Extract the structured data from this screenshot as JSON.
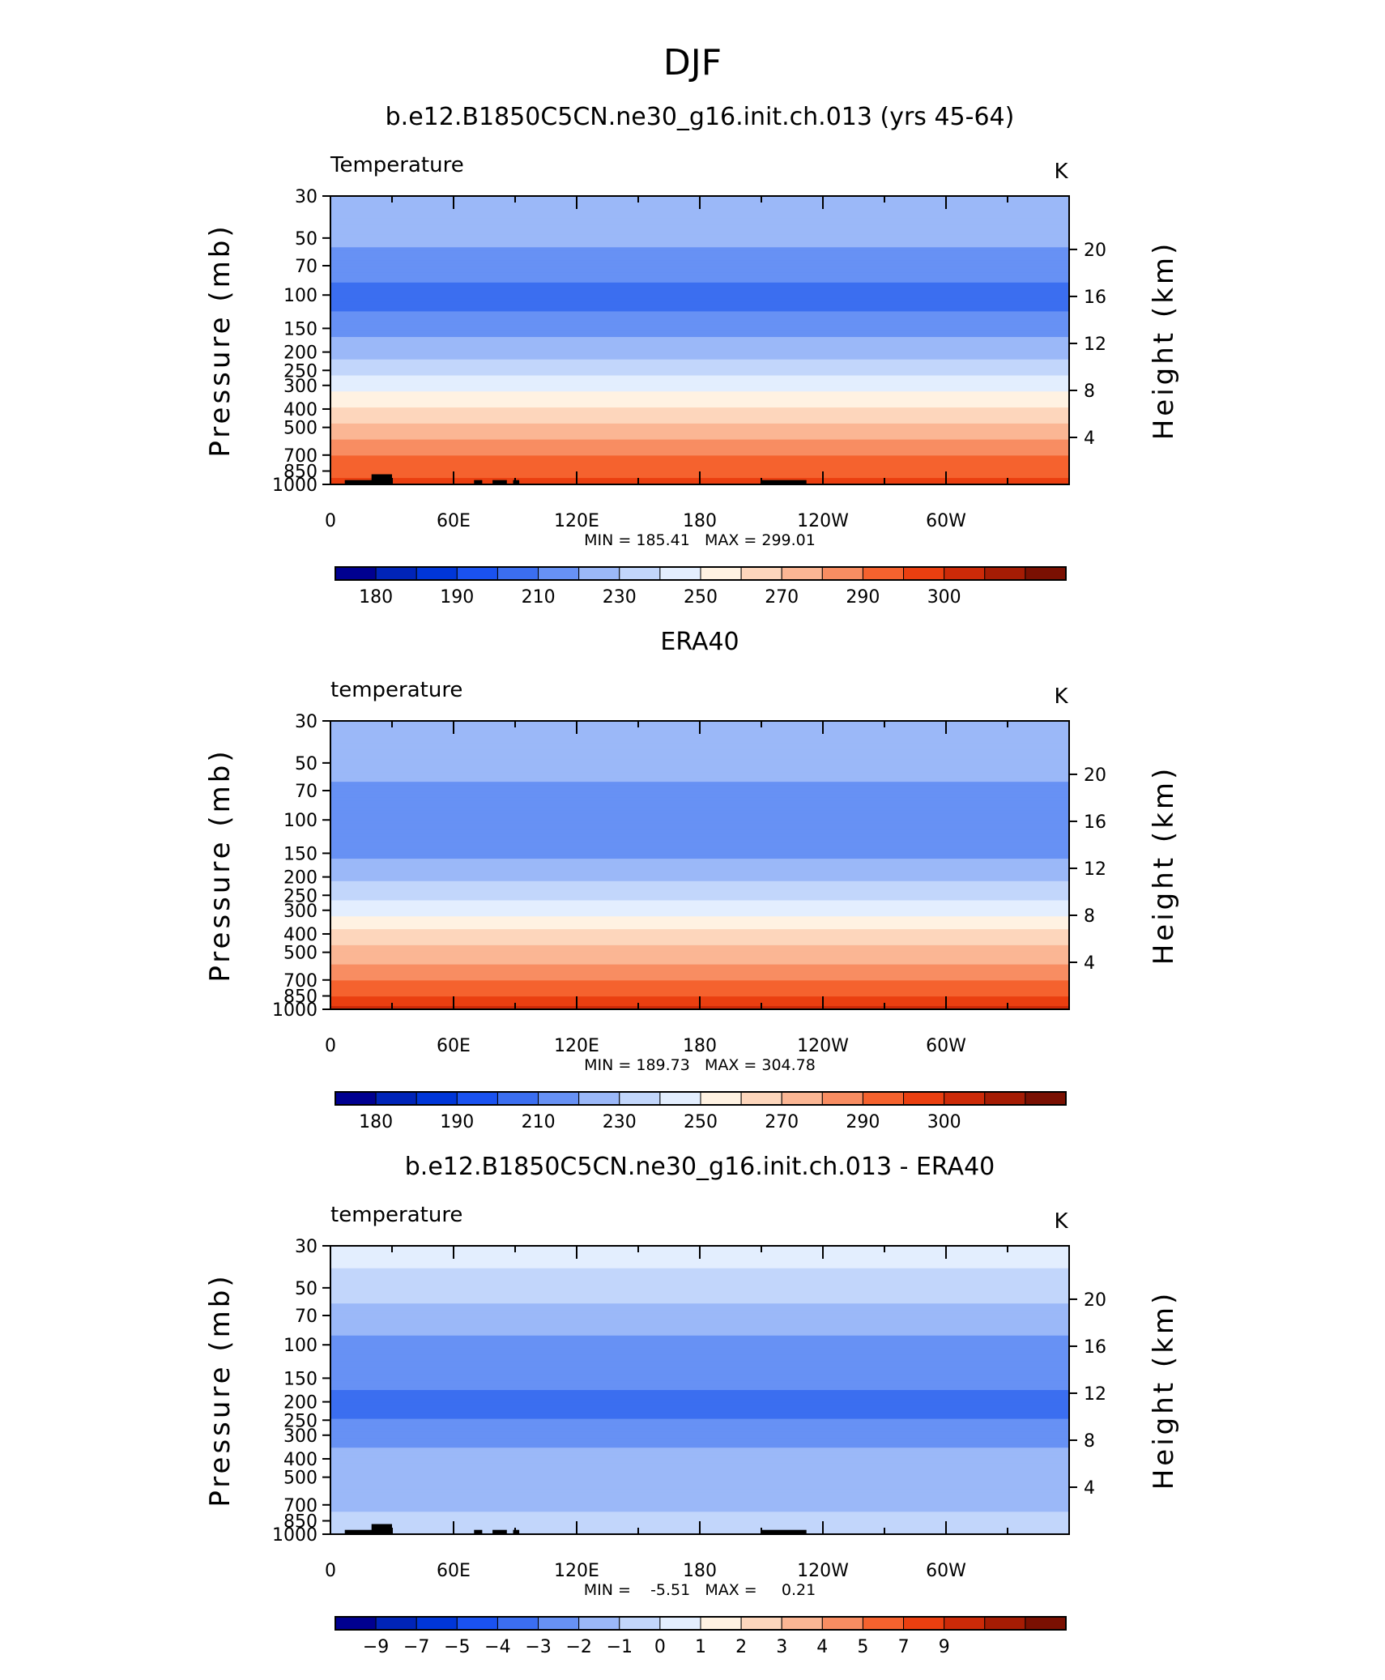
{
  "page_title": "DJF",
  "colors": {
    "temp_levels": [
      "#000090",
      "#0024b8",
      "#0036d8",
      "#1a52f0",
      "#3b6ef0",
      "#6791f4",
      "#9bb8f8",
      "#c2d6fb",
      "#e3eefe",
      "#fff2e2",
      "#fdd6bc",
      "#fbb694",
      "#f88d62",
      "#f5622e",
      "#ea3f10",
      "#cc2a08",
      "#a51c04",
      "#7a1002"
    ],
    "terrain": "#000000"
  },
  "chart_data": [
    {
      "type": "heatmap",
      "title": "b.e12.B1850C5CN.ne30_g16.init.ch.013 (yrs 45-64)",
      "left_string": "Temperature",
      "units": "K",
      "ylabel": "Pressure (mb)",
      "ylabel_right": "Height (km)",
      "x_ticks": [
        "0",
        "60E",
        "120E",
        "180",
        "120W",
        "60W"
      ],
      "x_range_degrees_east": [
        0,
        360
      ],
      "y_ticks": [
        "30",
        "50",
        "70",
        "100",
        "150",
        "200",
        "250",
        "300",
        "400",
        "500",
        "700",
        "850",
        "1000"
      ],
      "y_range_mb": [
        1000,
        30
      ],
      "height_ticks": [
        "20",
        "16",
        "12",
        "8",
        "4"
      ],
      "min_max": "MIN = 185.41   MAX = 299.01",
      "colorbar_labels": [
        "180",
        "190",
        "210",
        "230",
        "250",
        "270",
        "290",
        "300"
      ],
      "colorbar_levels": [
        175,
        180,
        185,
        190,
        200,
        210,
        220,
        230,
        240,
        250,
        260,
        270,
        280,
        290,
        295,
        300,
        305
      ],
      "profile": {
        "p_mb": [
          30,
          50,
          70,
          100,
          150,
          200,
          250,
          300,
          400,
          500,
          700,
          850,
          1000
        ],
        "t_K": [
          216,
          212,
          205,
          196,
          206,
          217,
          227,
          235,
          252,
          263,
          279,
          288,
          293
        ]
      },
      "has_terrain": true
    },
    {
      "type": "heatmap",
      "title": "ERA40",
      "left_string": "temperature",
      "units": "K",
      "ylabel": "Pressure (mb)",
      "ylabel_right": "Height (km)",
      "x_ticks": [
        "0",
        "60E",
        "120E",
        "180",
        "120W",
        "60W"
      ],
      "x_range_degrees_east": [
        0,
        360
      ],
      "y_ticks": [
        "30",
        "50",
        "70",
        "100",
        "150",
        "200",
        "250",
        "300",
        "400",
        "500",
        "700",
        "850",
        "1000"
      ],
      "y_range_mb": [
        1000,
        30
      ],
      "height_ticks": [
        "20",
        "16",
        "12",
        "8",
        "4"
      ],
      "min_max": "MIN = 189.73   MAX = 304.78",
      "colorbar_labels": [
        "180",
        "190",
        "210",
        "230",
        "250",
        "270",
        "290",
        "300"
      ],
      "colorbar_levels": [
        175,
        180,
        185,
        190,
        200,
        210,
        220,
        230,
        240,
        250,
        260,
        270,
        280,
        290,
        295,
        300,
        305
      ],
      "profile": {
        "p_mb": [
          30,
          50,
          70,
          100,
          150,
          200,
          250,
          300,
          400,
          500,
          700,
          850,
          1000
        ],
        "t_K": [
          218,
          214,
          208,
          201,
          208,
          218,
          227,
          236,
          253,
          264,
          280,
          290,
          297
        ]
      },
      "has_terrain": false
    },
    {
      "type": "heatmap",
      "title": "b.e12.B1850C5CN.ne30_g16.init.ch.013 - ERA40",
      "left_string": "temperature",
      "units": "K",
      "ylabel": "Pressure (mb)",
      "ylabel_right": "Height (km)",
      "x_ticks": [
        "0",
        "60E",
        "120E",
        "180",
        "120W",
        "60W"
      ],
      "x_range_degrees_east": [
        0,
        360
      ],
      "y_ticks": [
        "30",
        "50",
        "70",
        "100",
        "150",
        "200",
        "250",
        "300",
        "400",
        "500",
        "700",
        "850",
        "1000"
      ],
      "y_range_mb": [
        1000,
        30
      ],
      "height_ticks": [
        "20",
        "16",
        "12",
        "8",
        "4"
      ],
      "min_max": "MIN =    -5.51   MAX =     0.21",
      "colorbar_labels": [
        "-9",
        "-7",
        "-5",
        "-4",
        "-3",
        "-2",
        "-1",
        "0",
        "1",
        "2",
        "3",
        "4",
        "5",
        "7",
        "9"
      ],
      "colorbar_levels": [
        -11,
        -9,
        -7,
        -5,
        -4,
        -3,
        -2,
        -1,
        0,
        1,
        2,
        3,
        4,
        5,
        7,
        9,
        11
      ],
      "profile": {
        "p_mb": [
          30,
          50,
          70,
          100,
          150,
          200,
          250,
          300,
          400,
          500,
          700,
          850,
          1000
        ],
        "t_K": [
          -0.7,
          -1.3,
          -2.8,
          -3.1,
          -3.8,
          -4.2,
          -4.0,
          -3.3,
          -2.6,
          -2.4,
          -2.3,
          -1.7,
          -1.6
        ]
      },
      "has_terrain": true
    }
  ]
}
